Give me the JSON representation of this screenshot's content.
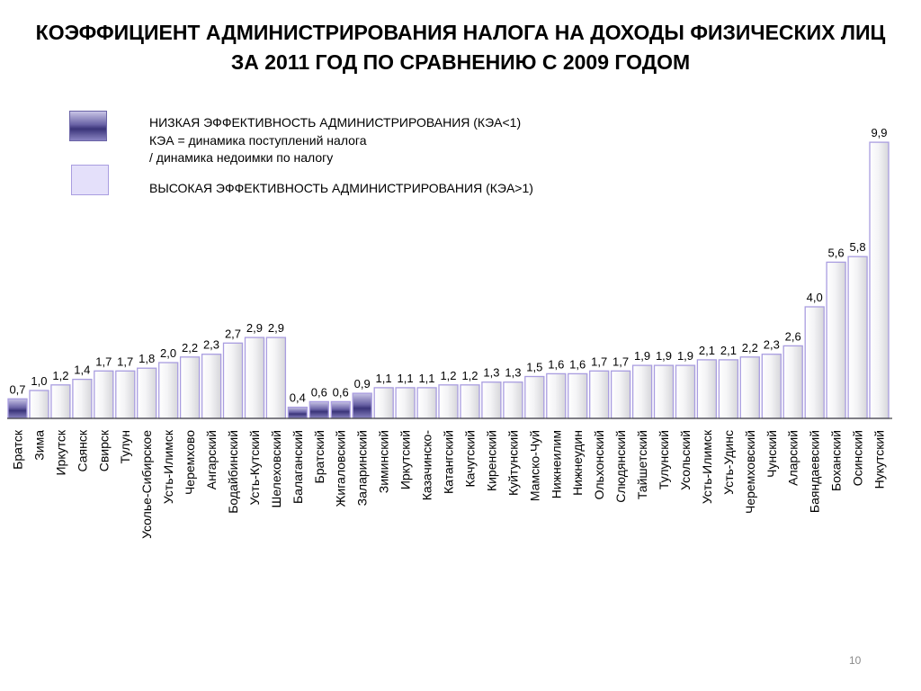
{
  "title_line1": "КОЭФФИЦИЕНТ АДМИНИСТРИРОВАНИЯ НАЛОГА НА ДОХОДЫ ФИЗИЧЕСКИХ ЛИЦ",
  "title_line2": "ЗА 2011 ГОД ПО СРАВНЕНИЮ С 2009 ГОДОМ",
  "legend": {
    "low": "НИЗКАЯ ЭФФЕКТИВНОСТЬ АДМИНИСТРИРОВАНИЯ (КЭА<1)",
    "formula_line1": "КЭА = динамика поступлений налога",
    "formula_line2": "/ динамика недоимки по налогу",
    "high": "ВЫСОКАЯ ЭФФЕКТИВНОСТЬ АДМИНИСТРИРОВАНИЯ (КЭА>1)"
  },
  "page_number": "10",
  "colors": {
    "low_fill": "#4a4390",
    "high_fill": "#e6e6ea",
    "bar_border": "#a99de0",
    "axis": "#444444"
  },
  "chart_data": {
    "type": "bar",
    "categories": [
      "Братск",
      "Зима",
      "Иркутск",
      "Саянск",
      "Свирск",
      "Тулун",
      "Усолье-Сибирское",
      "Усть-Илимск",
      "Черемхово",
      "Ангарский",
      "Бодайбинский",
      "Усть-Кутский",
      "Шелеховский",
      "Балаганский",
      "Братский",
      "Жигаловский",
      "Заларинский",
      "Зиминский",
      "Иркутский",
      "Казачинско-",
      "Катангский",
      "Качугский",
      "Киренский",
      "Куйтунский",
      "Мамско-Чуй",
      "Нижнеилим",
      "Нижнеудин",
      "Ольхонский",
      "Слюдянский",
      "Тайшетский",
      "Тулунский",
      "Усольский",
      "Усть-Илимск",
      "Усть-Удинс",
      "Черемховский",
      "Чунский",
      "Аларский",
      "Баяндаевский",
      "Боханский",
      "Осинский",
      "Нукутский"
    ],
    "values": [
      0.7,
      1.0,
      1.2,
      1.4,
      1.7,
      1.7,
      1.8,
      2.0,
      2.2,
      2.3,
      2.7,
      2.9,
      2.9,
      0.4,
      0.6,
      0.6,
      0.9,
      1.1,
      1.1,
      1.1,
      1.2,
      1.2,
      1.3,
      1.3,
      1.5,
      1.6,
      1.6,
      1.7,
      1.7,
      1.9,
      1.9,
      1.9,
      2.1,
      2.1,
      2.2,
      2.3,
      2.6,
      4.0,
      5.6,
      5.8,
      9.9
    ],
    "value_labels": [
      "0,7",
      "1,0",
      "1,2",
      "1,4",
      "1,7",
      "1,7",
      "1,8",
      "2,0",
      "2,2",
      "2,3",
      "2,7",
      "2,9",
      "2,9",
      "0,4",
      "0,6",
      "0,6",
      "0,9",
      "1,1",
      "1,1",
      "1,1",
      "1,2",
      "1,2",
      "1,3",
      "1,3",
      "1,5",
      "1,6",
      "1,6",
      "1,7",
      "1,7",
      "1,9",
      "1,9",
      "1,9",
      "2,1",
      "2,1",
      "2,2",
      "2,3",
      "2,6",
      "4,0",
      "5,6",
      "5,8",
      "9,9"
    ],
    "ylim": [
      0,
      10
    ],
    "grid": false,
    "legend_position": "top-left",
    "threshold": 1
  }
}
